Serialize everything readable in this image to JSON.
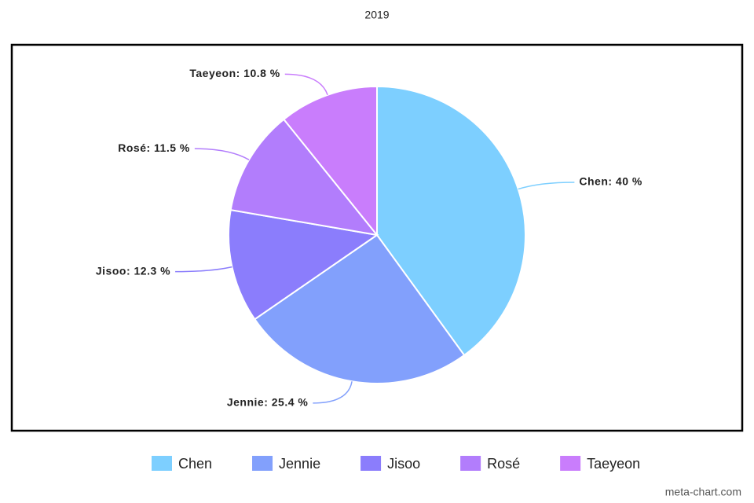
{
  "chart_data": {
    "type": "pie",
    "title": "2019",
    "categories": [
      "Chen",
      "Jennie",
      "Jisoo",
      "Rosé",
      "Taeyeon"
    ],
    "values": [
      40,
      25.4,
      12.3,
      11.5,
      10.8
    ],
    "value_labels": [
      "Chen: 40 %",
      "Jennie: 25.4 %",
      "Jisoo: 12.3 %",
      "Rosé: 11.5 %",
      "Taeyeon: 10.8 %"
    ],
    "colors": [
      "#7dcfff",
      "#82a0fc",
      "#8b7dfc",
      "#b27dfc",
      "#c97dfc"
    ],
    "legend": "bottom",
    "watermark": "meta-chart.com"
  }
}
